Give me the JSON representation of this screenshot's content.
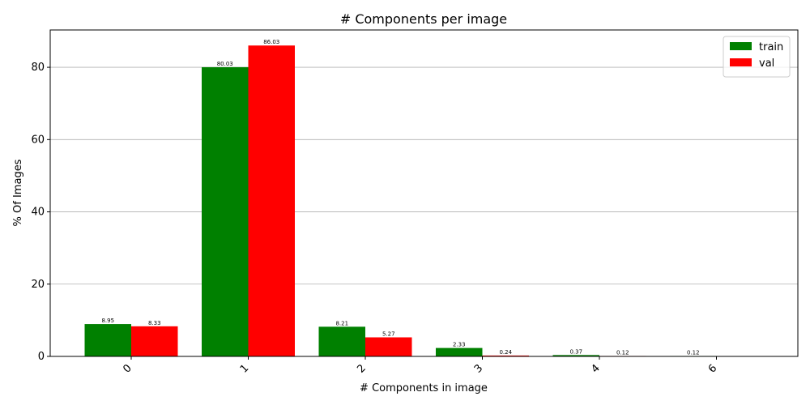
{
  "chart_data": {
    "type": "bar",
    "title": "# Components per image",
    "xlabel": "# Components in image",
    "ylabel": "% Of Images",
    "categories": [
      "0",
      "1",
      "2",
      "3",
      "4",
      "6"
    ],
    "series": [
      {
        "name": "train",
        "color": "#008000",
        "values": [
          8.95,
          80.03,
          8.21,
          2.33,
          0.37,
          0.12
        ]
      },
      {
        "name": "val",
        "color": "#ff0000",
        "values": [
          8.33,
          86.03,
          5.27,
          0.24,
          0.12,
          null
        ]
      }
    ],
    "ylim": [
      0,
      90.33
    ],
    "yticks": [
      0,
      20,
      40,
      60,
      80
    ],
    "grid": "y",
    "legend": "top-right",
    "xtick_rotation": 45
  }
}
